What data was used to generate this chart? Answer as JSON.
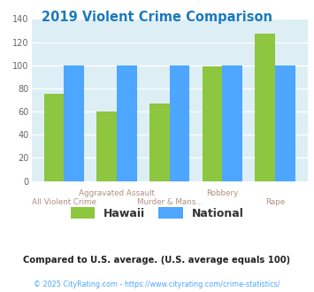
{
  "title": "2019 Violent Crime Comparison",
  "title_color": "#1a7abf",
  "categories_row1": [
    "",
    "Aggravated Assault",
    "",
    "Robbery",
    ""
  ],
  "categories_row2": [
    "All Violent Crime",
    "",
    "Murder & Mans...",
    "",
    "Rape"
  ],
  "hawaii_values": [
    75,
    60,
    67,
    99,
    127
  ],
  "national_values": [
    100,
    100,
    100,
    100,
    100
  ],
  "hawaii_color": "#8dc63f",
  "national_color": "#4da6ff",
  "ylim": [
    0,
    140
  ],
  "yticks": [
    0,
    20,
    40,
    60,
    80,
    100,
    120,
    140
  ],
  "background_color": "#ddeef5",
  "legend_hawaii": "Hawaii",
  "legend_national": "National",
  "footnote1": "Compared to U.S. average. (U.S. average equals 100)",
  "footnote2": "© 2025 CityRating.com - https://www.cityrating.com/crime-statistics/",
  "footnote1_color": "#222222",
  "footnote2_color": "#4da6ff",
  "xlabel_color": "#b09080",
  "bar_width": 0.38
}
